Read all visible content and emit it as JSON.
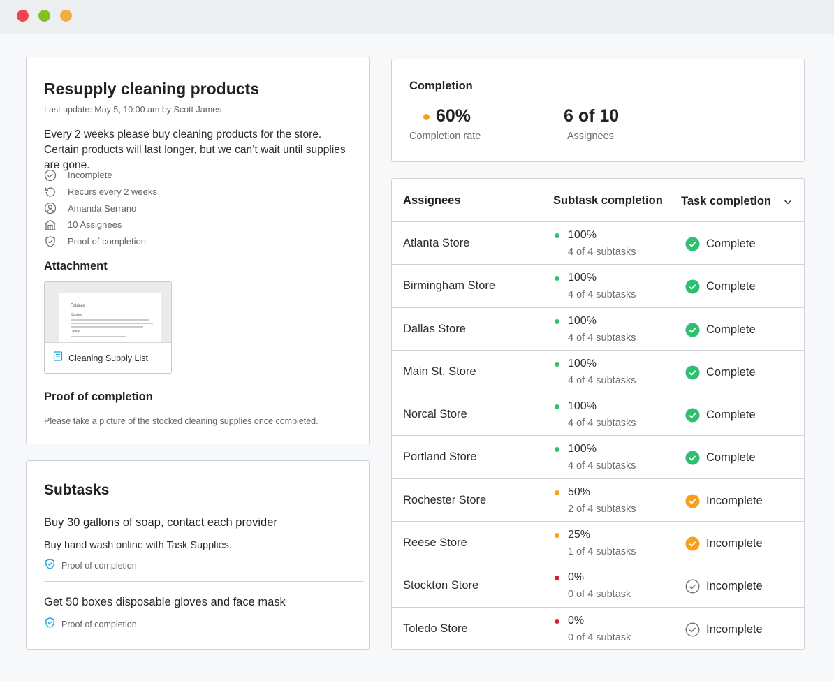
{
  "colors": {
    "green": "#2fbf71",
    "orange": "#f7a11a",
    "red": "#d41f3a",
    "accent_blue": "#1ba5d6"
  },
  "task": {
    "title": "Resupply cleaning products",
    "last_update": "Last update:  May 5, 10:00 am by Scott James",
    "description": "Every 2 weeks please buy cleaning products for the store. Certain products will last longer, but we can’t wait until supplies are gone.",
    "meta": [
      {
        "icon": "check-circle-icon",
        "label": "Incomplete"
      },
      {
        "icon": "recurring-icon",
        "label": "Recurs every 2 weeks"
      },
      {
        "icon": "user-icon",
        "label": "Amanda Serrano"
      },
      {
        "icon": "store-icon",
        "label": "10 Assignees"
      },
      {
        "icon": "shield-check-icon",
        "label": "Proof of completion"
      }
    ],
    "attachment_heading": "Attachment",
    "attachment": {
      "name": "Cleaning Supply List",
      "preview_title": "Folders",
      "preview_sections": [
        "Context",
        "Goals"
      ]
    },
    "proof_heading": "Proof of completion",
    "proof_text": "Please take a picture of the stocked cleaning supplies once completed."
  },
  "subtasks": {
    "heading": "Subtasks",
    "items": [
      {
        "title": "Buy 30 gallons of soap, contact each provider",
        "description": "Buy hand wash online with Task Supplies.",
        "proof": "Proof of completion"
      },
      {
        "title": "Get 50 boxes disposable gloves and face mask",
        "proof": "Proof of completion"
      }
    ]
  },
  "completion": {
    "heading": "Completion",
    "rate_value": "60%",
    "rate_label": "Completion rate",
    "assignees_value": "6 of 10",
    "assignees_label": "Assignees"
  },
  "assignees_table": {
    "headers": {
      "assignees": "Assignees",
      "subtask": "Subtask completion",
      "task": "Task completion"
    },
    "rows": [
      {
        "store": "Atlanta Store",
        "percent": "100%",
        "subtasks": "4 of 4 subtasks",
        "status": "Complete",
        "level": "green",
        "status_icon": "complete"
      },
      {
        "store": "Birmingham Store",
        "percent": "100%",
        "subtasks": "4 of 4 subtasks",
        "status": "Complete",
        "level": "green",
        "status_icon": "complete"
      },
      {
        "store": "Dallas Store",
        "percent": "100%",
        "subtasks": "4 of 4 subtasks",
        "status": "Complete",
        "level": "green",
        "status_icon": "complete"
      },
      {
        "store": "Main St. Store",
        "percent": "100%",
        "subtasks": "4 of 4 subtasks",
        "status": "Complete",
        "level": "green",
        "status_icon": "complete"
      },
      {
        "store": "Norcal Store",
        "percent": "100%",
        "subtasks": "4 of 4 subtasks",
        "status": "Complete",
        "level": "green",
        "status_icon": "complete"
      },
      {
        "store": "Portland Store",
        "percent": "100%",
        "subtasks": "4 of 4 subtasks",
        "status": "Complete",
        "level": "green",
        "status_icon": "complete"
      },
      {
        "store": "Rochester Store",
        "percent": "50%",
        "subtasks": "2 of 4 subtasks",
        "status": "Incomplete",
        "level": "orange",
        "status_icon": "partial"
      },
      {
        "store": "Reese Store",
        "percent": "25%",
        "subtasks": "1 of 4 subtasks",
        "status": "Incomplete",
        "level": "orange",
        "status_icon": "partial"
      },
      {
        "store": "Stockton Store",
        "percent": "0%",
        "subtasks": "0 of 4 subtask",
        "status": "Incomplete",
        "level": "red",
        "status_icon": "none"
      },
      {
        "store": "Toledo Store",
        "percent": "0%",
        "subtasks": "0 of 4 subtask",
        "status": "Incomplete",
        "level": "red",
        "status_icon": "none"
      }
    ]
  }
}
